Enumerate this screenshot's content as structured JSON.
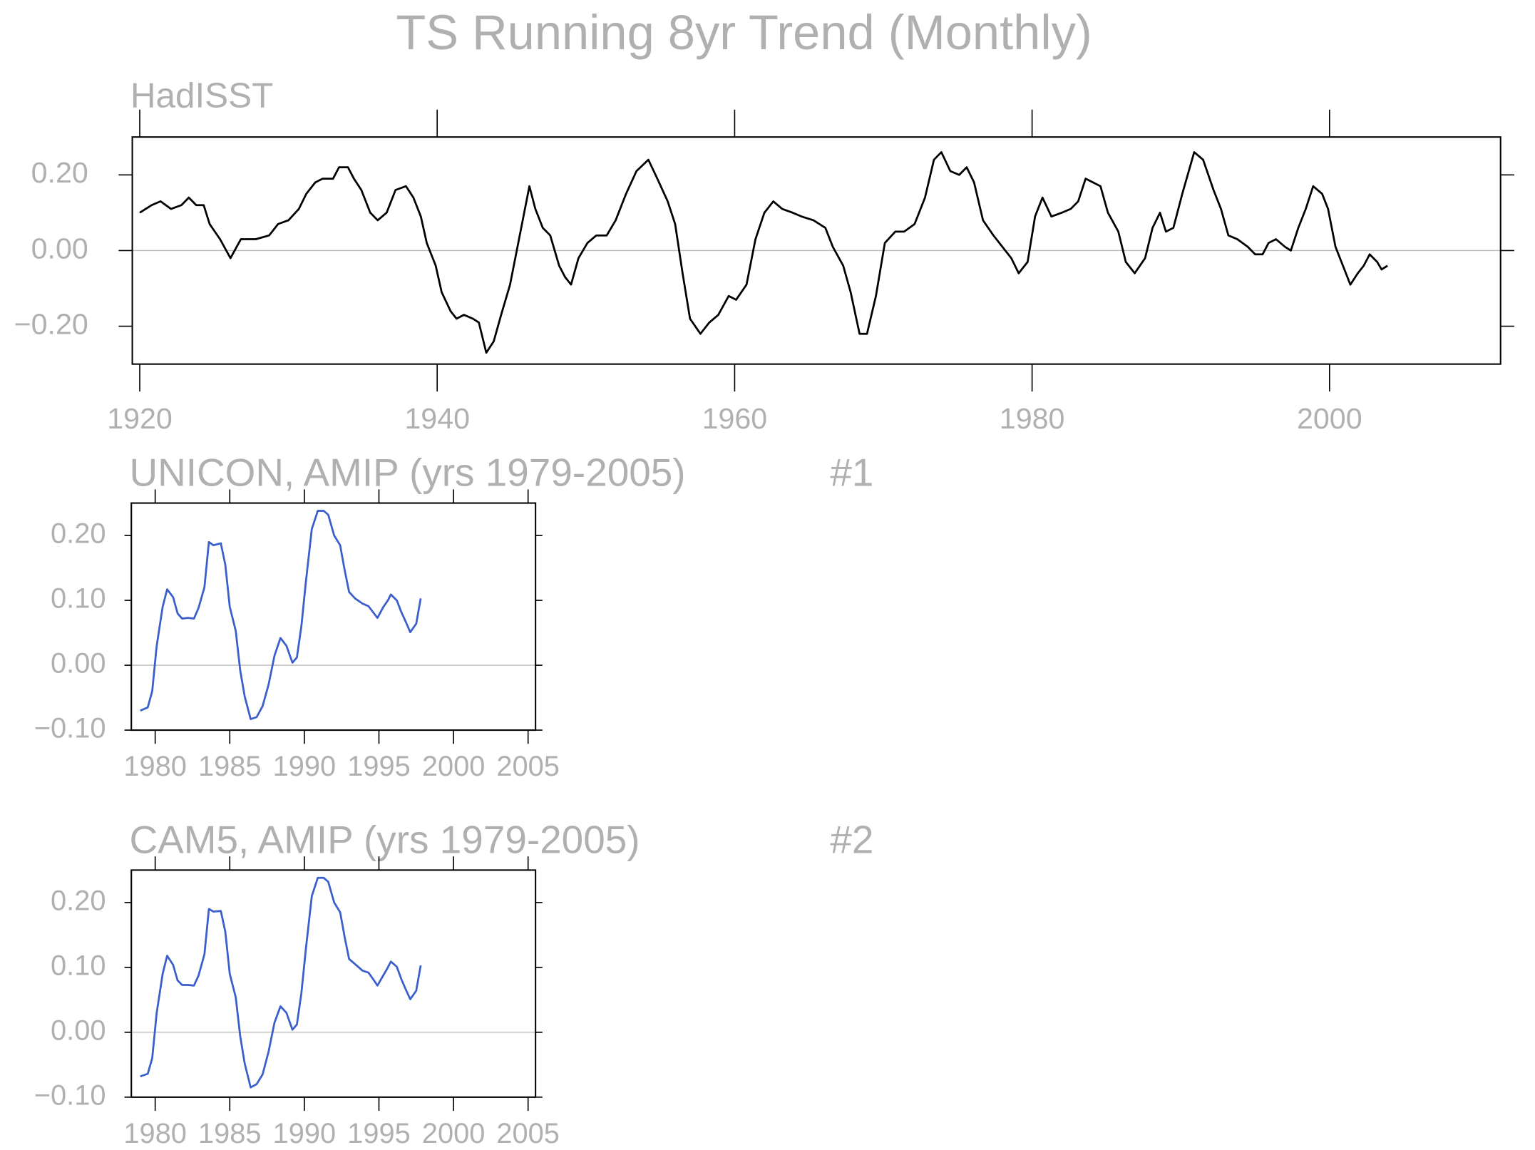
{
  "title": "TS Running 8yr Trend (Monthly)",
  "chart_data": [
    {
      "type": "line",
      "title": "HadISST",
      "color": "#000000",
      "xlim": [
        1919.5,
        2011.5
      ],
      "ylim": [
        -0.3,
        0.3
      ],
      "xticks": [
        1920,
        1940,
        1960,
        1980,
        2000
      ],
      "yticks": [
        {
          "value": -0.2,
          "label": "−0.20"
        },
        {
          "value": 0,
          "label": "0.00"
        },
        {
          "value": 0.2,
          "label": "0.20"
        }
      ],
      "x": [
        1920,
        1920.8,
        1921.4,
        1922.1,
        1922.8,
        1923.3,
        1923.8,
        1924.3,
        1924.7,
        1925.4,
        1926.1,
        1926.8,
        1927.3,
        1927.8,
        1928.7,
        1929.3,
        1930,
        1930.7,
        1931.2,
        1931.8,
        1932.3,
        1933,
        1933.4,
        1934,
        1934.4,
        1934.9,
        1935.5,
        1936,
        1936.6,
        1937.2,
        1937.9,
        1938.4,
        1938.9,
        1939.3,
        1939.9,
        1940.3,
        1940.9,
        1941.3,
        1941.8,
        1942.4,
        1942.8,
        1943.3,
        1943.8,
        1944.3,
        1944.9,
        1945.4,
        1945.8,
        1946.2,
        1946.6,
        1947.1,
        1947.6,
        1948.2,
        1948.6,
        1949,
        1949.5,
        1950.1,
        1950.7,
        1951.4,
        1952,
        1952.7,
        1953.4,
        1954.2,
        1954.8,
        1955.5,
        1956,
        1956.5,
        1957,
        1957.7,
        1958.3,
        1958.9,
        1959.6,
        1960.1,
        1960.8,
        1961.4,
        1962,
        1962.6,
        1963.2,
        1963.9,
        1964.5,
        1965.3,
        1966.1,
        1966.6,
        1967.3,
        1967.8,
        1968.4,
        1968.9,
        1969.5,
        1970.1,
        1970.8,
        1971.4,
        1972.1,
        1972.8,
        1973.4,
        1973.9,
        1974.5,
        1975.1,
        1975.6,
        1976.1,
        1976.7,
        1977.4,
        1978,
        1978.6,
        1979.1,
        1979.7,
        1980.2,
        1980.7,
        1981.3,
        1982,
        1982.6,
        1983.1,
        1983.6,
        1984.1,
        1984.6,
        1985.1,
        1985.8,
        1986.3,
        1986.9,
        1987.6,
        1988.1,
        1988.6,
        1989,
        1989.5,
        1990.1,
        1990.9,
        1991.5,
        1992.2,
        1992.7,
        1993.2,
        1993.8,
        1994.5,
        1995,
        1995.5,
        1995.9,
        1996.4,
        1997,
        1997.4,
        1997.9,
        1998.4,
        1998.9,
        1999.5,
        1999.9,
        2000.4,
        2000.9,
        2001.4,
        2001.9,
        2002.3,
        2002.7,
        2003.2,
        2003.5,
        2003.9
      ],
      "values": [
        0.1,
        0.12,
        0.13,
        0.11,
        0.12,
        0.14,
        0.12,
        0.12,
        0.07,
        0.03,
        -0.02,
        0.03,
        0.03,
        0.03,
        0.04,
        0.07,
        0.08,
        0.11,
        0.15,
        0.18,
        0.19,
        0.19,
        0.22,
        0.22,
        0.19,
        0.16,
        0.1,
        0.08,
        0.1,
        0.16,
        0.17,
        0.14,
        0.09,
        0.02,
        -0.04,
        -0.11,
        -0.16,
        -0.18,
        -0.17,
        -0.18,
        -0.19,
        -0.27,
        -0.24,
        -0.17,
        -0.09,
        0.01,
        0.09,
        0.17,
        0.11,
        0.06,
        0.04,
        -0.04,
        -0.07,
        -0.09,
        -0.02,
        0.02,
        0.04,
        0.04,
        0.08,
        0.15,
        0.21,
        0.24,
        0.19,
        0.13,
        0.07,
        -0.06,
        -0.18,
        -0.22,
        -0.19,
        -0.17,
        -0.12,
        -0.13,
        -0.09,
        0.03,
        0.1,
        0.13,
        0.11,
        0.1,
        0.09,
        0.08,
        0.06,
        0.01,
        -0.04,
        -0.11,
        -0.22,
        -0.22,
        -0.12,
        0.02,
        0.05,
        0.05,
        0.07,
        0.14,
        0.24,
        0.26,
        0.21,
        0.2,
        0.22,
        0.18,
        0.08,
        0.04,
        0.01,
        -0.02,
        -0.06,
        -0.03,
        0.09,
        0.14,
        0.09,
        0.1,
        0.11,
        0.13,
        0.19,
        0.18,
        0.17,
        0.1,
        0.05,
        -0.03,
        -0.06,
        -0.02,
        0.06,
        0.1,
        0.05,
        0.06,
        0.15,
        0.26,
        0.24,
        0.16,
        0.11,
        0.04,
        0.03,
        0.01,
        -0.01,
        -0.01,
        0.02,
        0.03,
        0.01,
        0.0,
        0.06,
        0.11,
        0.17,
        0.15,
        0.11,
        0.01,
        -0.04,
        -0.09,
        -0.06,
        -0.04,
        -0.01,
        -0.03,
        -0.05,
        -0.04
      ]
    },
    {
      "type": "line",
      "title": "UNICON, AMIP (yrs 1979-2005)",
      "annotation": "#1",
      "color": "#3a5fcd",
      "xlim": [
        1978.4,
        2005.5
      ],
      "ylim": [
        -0.1,
        0.25
      ],
      "xticks": [
        1980,
        1985,
        1990,
        1995,
        2000,
        2005
      ],
      "yticks": [
        {
          "value": -0.1,
          "label": "−0.10"
        },
        {
          "value": 0,
          "label": "0.00"
        },
        {
          "value": 0.1,
          "label": "0.10"
        },
        {
          "value": 0.2,
          "label": "0.20"
        }
      ],
      "x": [
        1979,
        1979.5,
        1979.8,
        1980.1,
        1980.5,
        1980.8,
        1981.2,
        1981.5,
        1981.8,
        1982.2,
        1982.6,
        1982.9,
        1983.3,
        1983.6,
        1983.9,
        1984.4,
        1984.7,
        1985,
        1985.4,
        1985.7,
        1986,
        1986.4,
        1986.8,
        1987.2,
        1987.6,
        1988,
        1988.4,
        1988.8,
        1989.2,
        1989.5,
        1989.8,
        1990.1,
        1990.5,
        1990.9,
        1991.3,
        1991.6,
        1992,
        1992.4,
        1992.7,
        1993,
        1993.4,
        1993.9,
        1994.3,
        1994.7,
        1994.9,
        1995.3,
        1995.6,
        1995.8,
        1996.2,
        1996.5,
        1996.8,
        1997.1,
        1997.5,
        1997.8
      ],
      "values": [
        -0.07,
        -0.065,
        -0.04,
        0.03,
        0.09,
        0.117,
        0.105,
        0.08,
        0.072,
        0.073,
        0.072,
        0.088,
        0.12,
        0.19,
        0.185,
        0.188,
        0.155,
        0.09,
        0.053,
        -0.008,
        -0.048,
        -0.083,
        -0.08,
        -0.063,
        -0.03,
        0.015,
        0.042,
        0.03,
        0.004,
        0.012,
        0.06,
        0.128,
        0.21,
        0.238,
        0.238,
        0.232,
        0.2,
        0.185,
        0.147,
        0.113,
        0.103,
        0.095,
        0.091,
        0.079,
        0.073,
        0.09,
        0.1,
        0.109,
        0.1,
        0.082,
        0.067,
        0.051,
        0.064,
        0.103
      ]
    },
    {
      "type": "line",
      "title": "CAM5, AMIP (yrs 1979-2005)",
      "annotation": "#2",
      "color": "#3a5fcd",
      "xlim": [
        1978.4,
        2005.5
      ],
      "ylim": [
        -0.1,
        0.25
      ],
      "xticks": [
        1980,
        1985,
        1990,
        1995,
        2000,
        2005
      ],
      "yticks": [
        {
          "value": -0.1,
          "label": "−0.10"
        },
        {
          "value": 0,
          "label": "0.00"
        },
        {
          "value": 0.1,
          "label": "0.10"
        },
        {
          "value": 0.2,
          "label": "0.20"
        }
      ],
      "x": [
        1979,
        1979.5,
        1979.8,
        1980.1,
        1980.5,
        1980.8,
        1981.2,
        1981.5,
        1981.8,
        1982.2,
        1982.6,
        1982.9,
        1983.3,
        1983.6,
        1983.9,
        1984.4,
        1984.7,
        1985,
        1985.4,
        1985.7,
        1986,
        1986.4,
        1986.8,
        1987.2,
        1987.6,
        1988,
        1988.4,
        1988.8,
        1989.2,
        1989.5,
        1989.8,
        1990.1,
        1990.5,
        1990.9,
        1991.3,
        1991.6,
        1992,
        1992.4,
        1992.7,
        1993,
        1993.4,
        1993.9,
        1994.3,
        1994.7,
        1994.9,
        1995.3,
        1995.6,
        1995.8,
        1996.2,
        1996.5,
        1996.8,
        1997.1,
        1997.5,
        1997.8
      ],
      "values": [
        -0.068,
        -0.064,
        -0.04,
        0.03,
        0.09,
        0.118,
        0.104,
        0.08,
        0.073,
        0.073,
        0.072,
        0.087,
        0.12,
        0.19,
        0.186,
        0.187,
        0.155,
        0.09,
        0.054,
        -0.006,
        -0.048,
        -0.085,
        -0.08,
        -0.065,
        -0.03,
        0.015,
        0.04,
        0.03,
        0.004,
        0.012,
        0.06,
        0.128,
        0.21,
        0.238,
        0.238,
        0.232,
        0.2,
        0.185,
        0.147,
        0.113,
        0.105,
        0.095,
        0.092,
        0.079,
        0.072,
        0.088,
        0.1,
        0.109,
        0.101,
        0.082,
        0.066,
        0.051,
        0.064,
        0.103
      ]
    }
  ]
}
